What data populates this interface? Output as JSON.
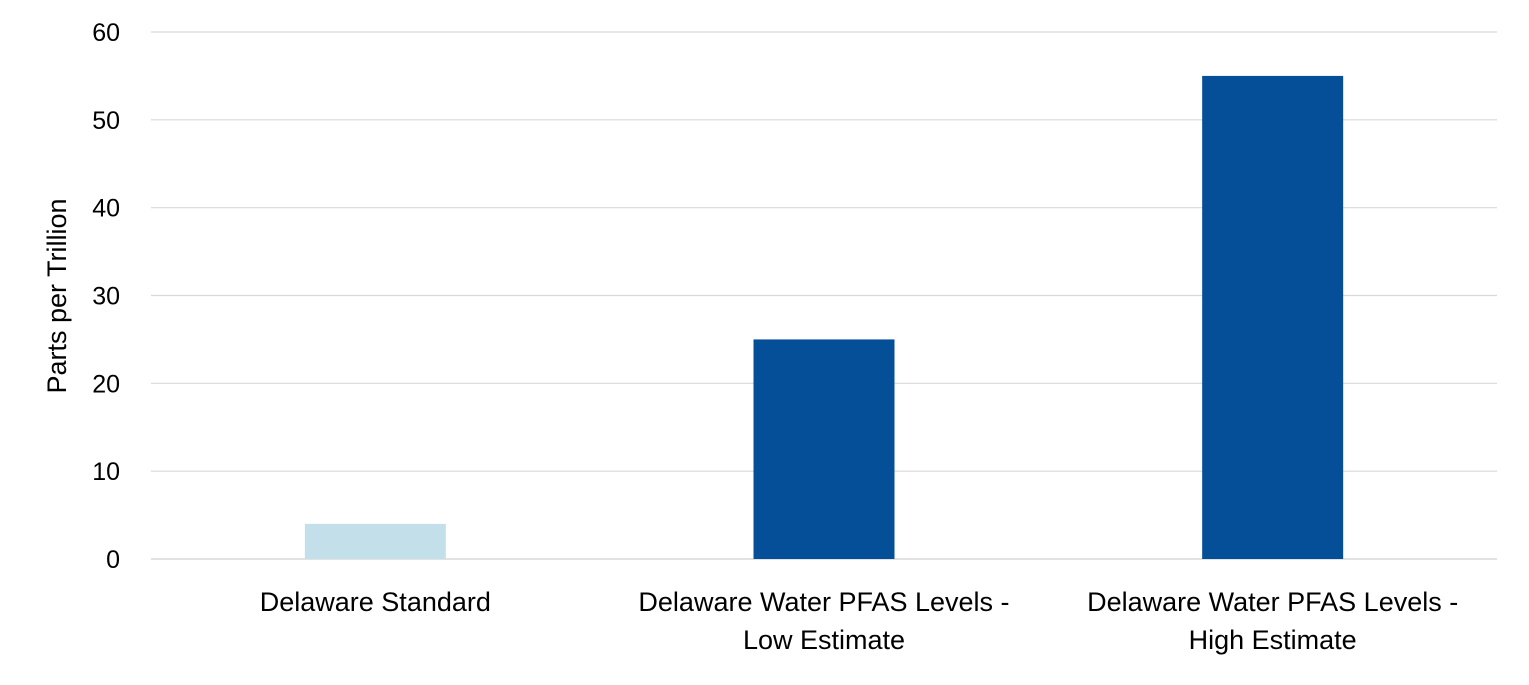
{
  "chart_data": {
    "type": "bar",
    "title": "",
    "xlabel": "",
    "ylabel": "Parts per Trillion",
    "ylim": [
      0,
      60
    ],
    "yticks": [
      0,
      10,
      20,
      30,
      40,
      50,
      60
    ],
    "grid": true,
    "legend": "none",
    "categories": [
      [
        "Delaware Standard"
      ],
      [
        "Delaware Water PFAS Levels -",
        "Low Estimate"
      ],
      [
        "Delaware Water PFAS Levels -",
        "High Estimate"
      ]
    ],
    "values": [
      4,
      25,
      55
    ],
    "colors": [
      "#c3dfe9",
      "#044f98",
      "#044f98"
    ],
    "gridline_color": "#d9d9d9"
  }
}
